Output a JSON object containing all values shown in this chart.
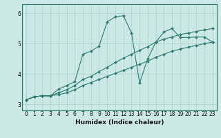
{
  "title": "",
  "xlabel": "Humidex (Indice chaleur)",
  "bg_color": "#cce8e4",
  "line_color": "#2d7a6e",
  "grid_color": "#aad4ce",
  "xlim": [
    -0.5,
    23.5
  ],
  "ylim": [
    2.8,
    6.3
  ],
  "xticks": [
    0,
    1,
    2,
    3,
    4,
    5,
    6,
    7,
    8,
    9,
    10,
    11,
    12,
    13,
    14,
    15,
    16,
    17,
    18,
    19,
    20,
    21,
    22,
    23
  ],
  "yticks": [
    3,
    4,
    5,
    6
  ],
  "line1_x": [
    0,
    1,
    2,
    3,
    4,
    5,
    6,
    7,
    8,
    9,
    10,
    11,
    12,
    13,
    14,
    15,
    16,
    17,
    18,
    19,
    20,
    21,
    22,
    23
  ],
  "line1_y": [
    3.15,
    3.25,
    3.28,
    3.28,
    3.32,
    3.38,
    3.48,
    3.62,
    3.72,
    3.82,
    3.92,
    4.02,
    4.12,
    4.22,
    4.32,
    4.42,
    4.55,
    4.65,
    4.75,
    4.82,
    4.88,
    4.94,
    5.0,
    5.05
  ],
  "line2_x": [
    0,
    1,
    2,
    3,
    4,
    5,
    6,
    7,
    8,
    9,
    10,
    11,
    12,
    13,
    14,
    15,
    16,
    17,
    18,
    19,
    20,
    21,
    22,
    23
  ],
  "line2_y": [
    3.15,
    3.25,
    3.28,
    3.28,
    3.38,
    3.48,
    3.62,
    3.82,
    3.92,
    4.08,
    4.22,
    4.38,
    4.52,
    4.65,
    4.78,
    4.9,
    5.05,
    5.15,
    5.22,
    5.3,
    5.35,
    5.4,
    5.45,
    5.5
  ],
  "line3_x": [
    0,
    1,
    2,
    3,
    4,
    5,
    6,
    7,
    8,
    9,
    10,
    11,
    12,
    13,
    14,
    15,
    16,
    17,
    18,
    19,
    20,
    21,
    22,
    23
  ],
  "line3_y": [
    3.15,
    3.25,
    3.28,
    3.28,
    3.5,
    3.62,
    3.75,
    4.65,
    4.75,
    4.92,
    5.72,
    5.88,
    5.92,
    5.35,
    3.7,
    4.5,
    5.05,
    5.38,
    5.5,
    5.2,
    5.2,
    5.22,
    5.22,
    5.05
  ]
}
